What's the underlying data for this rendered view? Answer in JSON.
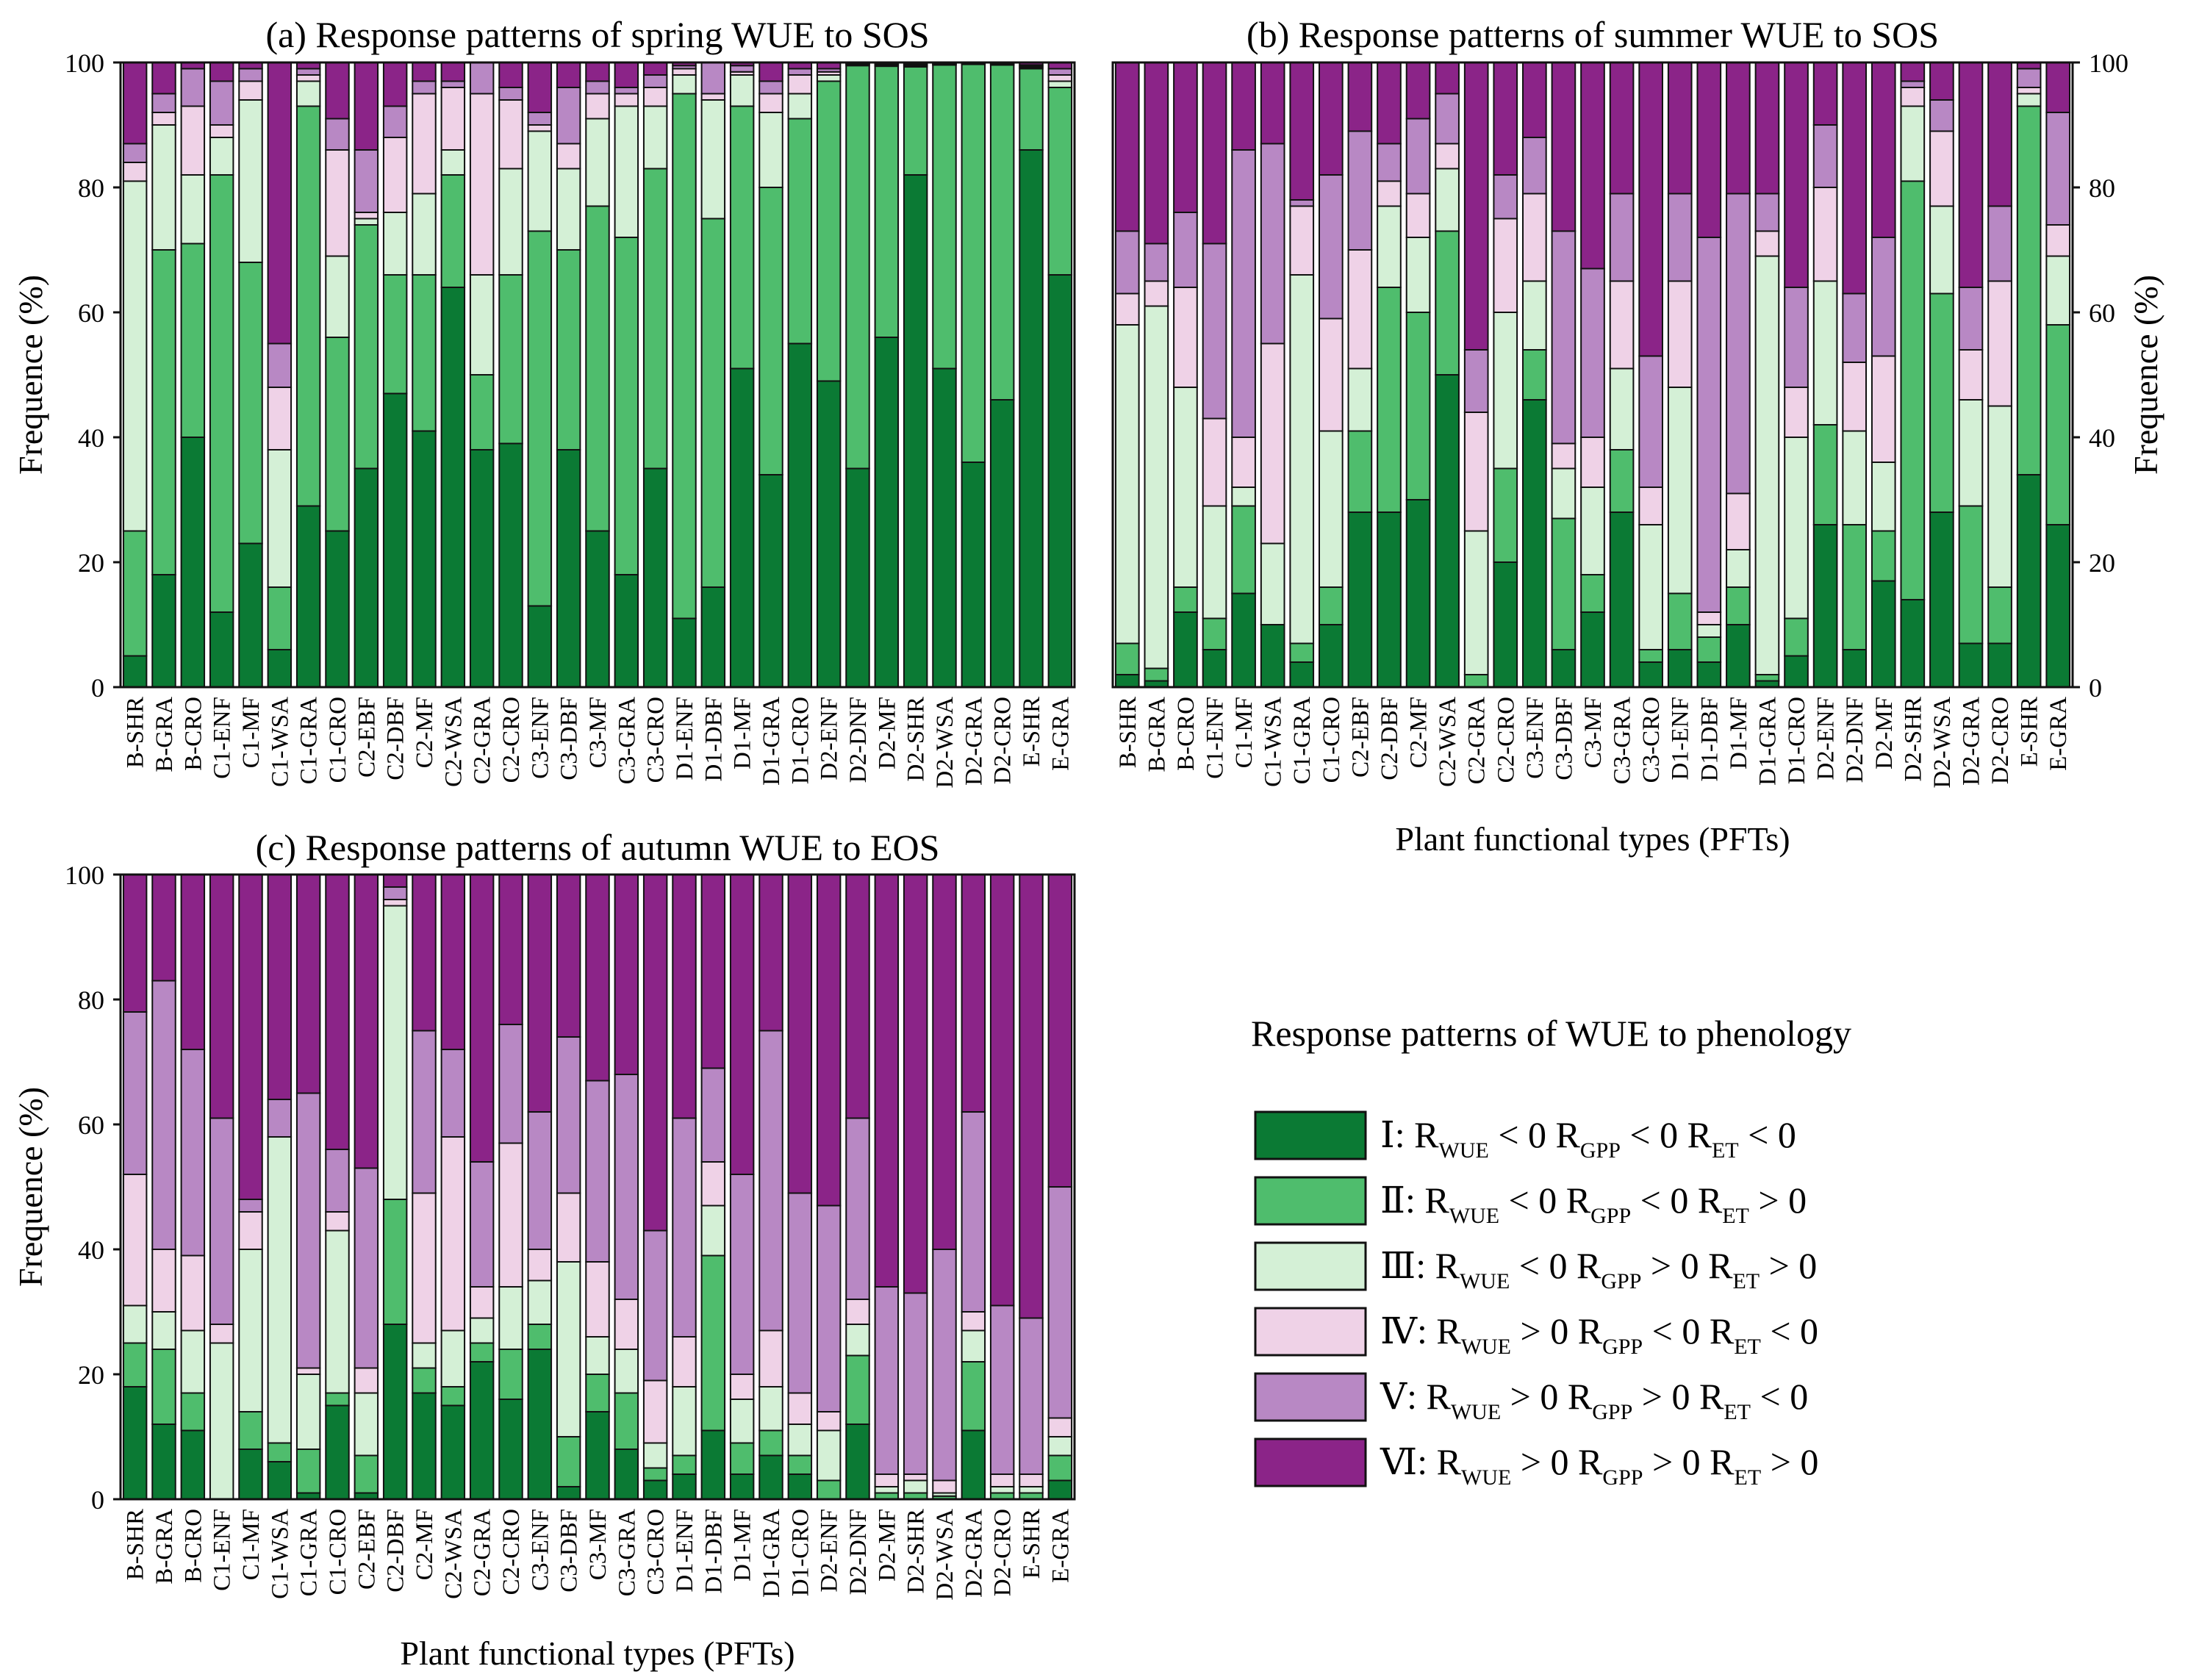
{
  "legend": {
    "title": "Response patterns of WUE to phenology",
    "items": [
      {
        "numeral": "Ⅰ",
        "color": "#0b7a34",
        "rw": "< 0",
        "rg": "< 0",
        "re": "< 0"
      },
      {
        "numeral": "Ⅱ",
        "color": "#4fbd6d",
        "rw": "< 0",
        "rg": "< 0",
        "re": "> 0"
      },
      {
        "numeral": "Ⅲ",
        "color": "#d4f0d6",
        "rw": "< 0",
        "rg": "> 0",
        "re": "> 0"
      },
      {
        "numeral": "Ⅳ",
        "color": "#efd2e7",
        "rw": "> 0",
        "rg": "< 0",
        "re": "< 0"
      },
      {
        "numeral": "Ⅴ",
        "color": "#b888c4",
        "rw": "> 0",
        "rg": "> 0",
        "re": "< 0"
      },
      {
        "numeral": "Ⅵ",
        "color": "#8b2488",
        "rw": "> 0",
        "rg": "> 0",
        "re": "> 0"
      }
    ],
    "r_label": "R",
    "sub_wue": "WUE",
    "sub_gpp": "GPP",
    "sub_et": "ET"
  },
  "chart_data": [
    {
      "type": "bar",
      "stacked": true,
      "title": "(a) Response patterns of spring WUE to SOS",
      "ylabel": "Frequence (%)",
      "xlabel": "",
      "ylim": [
        0,
        100
      ],
      "yticks": [
        0,
        20,
        40,
        60,
        80,
        100
      ],
      "y_axis_side": "left",
      "categories": [
        "B-SHR",
        "B-GRA",
        "B-CRO",
        "C1-ENF",
        "C1-MF",
        "C1-WSA",
        "C1-GRA",
        "C1-CRO",
        "C2-EBF",
        "C2-DBF",
        "C2-MF",
        "C2-WSA",
        "C2-GRA",
        "C2-CRO",
        "C3-ENF",
        "C3-DBF",
        "C3-MF",
        "C3-GRA",
        "C3-CRO",
        "D1-ENF",
        "D1-DBF",
        "D1-MF",
        "D1-GRA",
        "D1-CRO",
        "D2-ENF",
        "D2-DNF",
        "D2-MF",
        "D2-SHR",
        "D2-WSA",
        "D2-GRA",
        "D2-CRO",
        "E-SHR",
        "E-GRA"
      ],
      "cumulative": [
        [
          5,
          25,
          81,
          84,
          87,
          100
        ],
        [
          18,
          70,
          90,
          92,
          95,
          100
        ],
        [
          40,
          71,
          82,
          93,
          99,
          100
        ],
        [
          12,
          82,
          88,
          90,
          97,
          100
        ],
        [
          23,
          68,
          94,
          97,
          99,
          100
        ],
        [
          6,
          16,
          38,
          48,
          55,
          100
        ],
        [
          29,
          93,
          97,
          98,
          99,
          100
        ],
        [
          25,
          56,
          69,
          86,
          91,
          100
        ],
        [
          35,
          74,
          75,
          76,
          86,
          100
        ],
        [
          47,
          66,
          76,
          88,
          93,
          100
        ],
        [
          41,
          66,
          79,
          95,
          97,
          100
        ],
        [
          64,
          82,
          86,
          96,
          97,
          100
        ],
        [
          38,
          50,
          66,
          95,
          100,
          100
        ],
        [
          39,
          66,
          83,
          94,
          96,
          100
        ],
        [
          13,
          73,
          89,
          90,
          92,
          100
        ],
        [
          38,
          70,
          83,
          87,
          96,
          100
        ],
        [
          25,
          77,
          91,
          95,
          97,
          100
        ],
        [
          18,
          72,
          93,
          95,
          96,
          100
        ],
        [
          35,
          83,
          93,
          96,
          98,
          100
        ],
        [
          11,
          95,
          98,
          99,
          99.5,
          100
        ],
        [
          16,
          75,
          94,
          95,
          100,
          100
        ],
        [
          51,
          93,
          98,
          98.5,
          99.5,
          100
        ],
        [
          34,
          80,
          92,
          95,
          97,
          100
        ],
        [
          55,
          91,
          95,
          98,
          99,
          100
        ],
        [
          49,
          97,
          98,
          98.5,
          99,
          100
        ],
        [
          35,
          99.5,
          99.7,
          99.8,
          99.9,
          100
        ],
        [
          56,
          99.4,
          99.6,
          99.7,
          99.8,
          100
        ],
        [
          82,
          99.3,
          99.5,
          99.6,
          99.8,
          100
        ],
        [
          51,
          99.6,
          99.7,
          99.8,
          99.9,
          100
        ],
        [
          36,
          99.7,
          99.8,
          99.9,
          99.95,
          100
        ],
        [
          46,
          99.6,
          99.7,
          99.8,
          99.9,
          100
        ],
        [
          86,
          99,
          99.2,
          99.4,
          99.6,
          100
        ],
        [
          66,
          96,
          97,
          98,
          99,
          100
        ]
      ]
    },
    {
      "type": "bar",
      "stacked": true,
      "title": "(b) Response patterns of summer WUE to SOS",
      "ylabel": "Frequence (%)",
      "xlabel": "Plant functional types (PFTs)",
      "ylim": [
        0,
        100
      ],
      "yticks": [
        0,
        20,
        40,
        60,
        80,
        100
      ],
      "y_axis_side": "right",
      "categories": [
        "B-SHR",
        "B-GRA",
        "B-CRO",
        "C1-ENF",
        "C1-MF",
        "C1-WSA",
        "C1-GRA",
        "C1-CRO",
        "C2-EBF",
        "C2-DBF",
        "C2-MF",
        "C2-WSA",
        "C2-GRA",
        "C2-CRO",
        "C3-ENF",
        "C3-DBF",
        "C3-MF",
        "C3-GRA",
        "C3-CRO",
        "D1-ENF",
        "D1-DBF",
        "D1-MF",
        "D1-GRA",
        "D1-CRO",
        "D2-ENF",
        "D2-DNF",
        "D2-MF",
        "D2-SHR",
        "D2-WSA",
        "D2-GRA",
        "D2-CRO",
        "E-SHR",
        "E-GRA"
      ],
      "cumulative": [
        [
          2,
          7,
          58,
          63,
          73,
          100
        ],
        [
          1,
          3,
          61,
          65,
          71,
          100
        ],
        [
          12,
          16,
          48,
          64,
          76,
          100
        ],
        [
          6,
          11,
          29,
          43,
          71,
          100
        ],
        [
          15,
          29,
          32,
          40,
          86,
          100
        ],
        [
          10,
          10,
          23,
          55,
          87,
          100
        ],
        [
          4,
          7,
          66,
          77,
          78,
          100
        ],
        [
          10,
          16,
          41,
          59,
          82,
          100
        ],
        [
          28,
          41,
          51,
          70,
          89,
          100
        ],
        [
          28,
          64,
          77,
          81,
          87,
          100
        ],
        [
          30,
          60,
          72,
          79,
          91,
          100
        ],
        [
          50,
          73,
          83,
          87,
          95,
          100
        ],
        [
          0,
          2,
          25,
          44,
          54,
          100
        ],
        [
          20,
          35,
          60,
          75,
          82,
          100
        ],
        [
          46,
          54,
          65,
          79,
          88,
          100
        ],
        [
          6,
          27,
          35,
          39,
          73,
          100
        ],
        [
          12,
          18,
          32,
          40,
          67,
          100
        ],
        [
          28,
          38,
          51,
          65,
          79,
          100
        ],
        [
          4,
          6,
          26,
          32,
          53,
          100
        ],
        [
          6,
          15,
          48,
          65,
          79,
          100
        ],
        [
          4,
          8,
          10,
          12,
          72,
          100
        ],
        [
          10,
          16,
          22,
          31,
          79,
          100
        ],
        [
          1,
          2,
          69,
          73,
          79,
          100
        ],
        [
          5,
          11,
          40,
          48,
          64,
          100
        ],
        [
          26,
          42,
          65,
          80,
          90,
          100
        ],
        [
          6,
          26,
          41,
          52,
          63,
          100
        ],
        [
          17,
          25,
          36,
          53,
          72,
          100
        ],
        [
          14,
          81,
          93,
          96,
          97,
          100
        ],
        [
          28,
          63,
          77,
          89,
          94,
          100
        ],
        [
          7,
          29,
          46,
          54,
          64,
          100
        ],
        [
          7,
          16,
          45,
          65,
          77,
          100
        ],
        [
          34,
          93,
          95,
          96,
          99,
          100
        ],
        [
          26,
          58,
          69,
          74,
          92,
          100
        ]
      ]
    },
    {
      "type": "bar",
      "stacked": true,
      "title": "(c) Response patterns of autumn WUE to EOS",
      "ylabel": "Frequence (%)",
      "xlabel": "Plant functional types (PFTs)",
      "ylim": [
        0,
        100
      ],
      "yticks": [
        0,
        20,
        40,
        60,
        80,
        100
      ],
      "y_axis_side": "left",
      "categories": [
        "B-SHR",
        "B-GRA",
        "B-CRO",
        "C1-ENF",
        "C1-MF",
        "C1-WSA",
        "C1-GRA",
        "C1-CRO",
        "C2-EBF",
        "C2-DBF",
        "C2-MF",
        "C2-WSA",
        "C2-GRA",
        "C2-CRO",
        "C3-ENF",
        "C3-DBF",
        "C3-MF",
        "C3-GRA",
        "C3-CRO",
        "D1-ENF",
        "D1-DBF",
        "D1-MF",
        "D1-GRA",
        "D1-CRO",
        "D2-ENF",
        "D2-DNF",
        "D2-MF",
        "D2-SHR",
        "D2-WSA",
        "D2-GRA",
        "D2-CRO",
        "E-SHR",
        "E-GRA"
      ],
      "cumulative": [
        [
          18,
          25,
          31,
          52,
          78,
          100
        ],
        [
          12,
          24,
          30,
          40,
          83,
          100
        ],
        [
          11,
          17,
          27,
          39,
          72,
          100
        ],
        [
          0,
          0,
          25,
          28,
          61,
          100
        ],
        [
          8,
          14,
          40,
          46,
          48,
          100
        ],
        [
          6,
          9,
          58,
          58,
          64,
          100
        ],
        [
          1,
          8,
          20,
          21,
          65,
          100
        ],
        [
          15,
          17,
          43,
          46,
          56,
          100
        ],
        [
          1,
          7,
          17,
          21,
          53,
          100
        ],
        [
          28,
          48,
          95,
          96,
          98,
          100
        ],
        [
          17,
          21,
          25,
          49,
          75,
          100
        ],
        [
          15,
          18,
          27,
          58,
          72,
          100
        ],
        [
          22,
          25,
          29,
          34,
          54,
          100
        ],
        [
          16,
          24,
          34,
          57,
          76,
          100
        ],
        [
          24,
          28,
          35,
          40,
          62,
          100
        ],
        [
          2,
          10,
          38,
          49,
          74,
          100
        ],
        [
          14,
          20,
          26,
          38,
          67,
          100
        ],
        [
          8,
          17,
          24,
          32,
          68,
          100
        ],
        [
          3,
          5,
          9,
          19,
          43,
          100
        ],
        [
          4,
          7,
          18,
          26,
          61,
          100
        ],
        [
          11,
          39,
          47,
          54,
          69,
          100
        ],
        [
          4,
          9,
          16,
          20,
          52,
          100
        ],
        [
          7,
          11,
          18,
          27,
          75,
          100
        ],
        [
          4,
          7,
          12,
          17,
          49,
          100
        ],
        [
          0,
          3,
          11,
          14,
          47,
          100
        ],
        [
          12,
          23,
          28,
          32,
          61,
          100
        ],
        [
          0,
          1,
          2,
          4,
          34,
          100
        ],
        [
          0,
          1,
          3,
          4,
          33,
          100
        ],
        [
          0,
          0.5,
          1,
          3,
          40,
          100
        ],
        [
          11,
          22,
          27,
          30,
          62,
          100
        ],
        [
          0,
          1,
          2,
          4,
          31,
          100
        ],
        [
          0,
          1,
          2,
          4,
          29,
          100
        ],
        [
          3,
          7,
          10,
          13,
          50,
          100
        ]
      ]
    }
  ]
}
